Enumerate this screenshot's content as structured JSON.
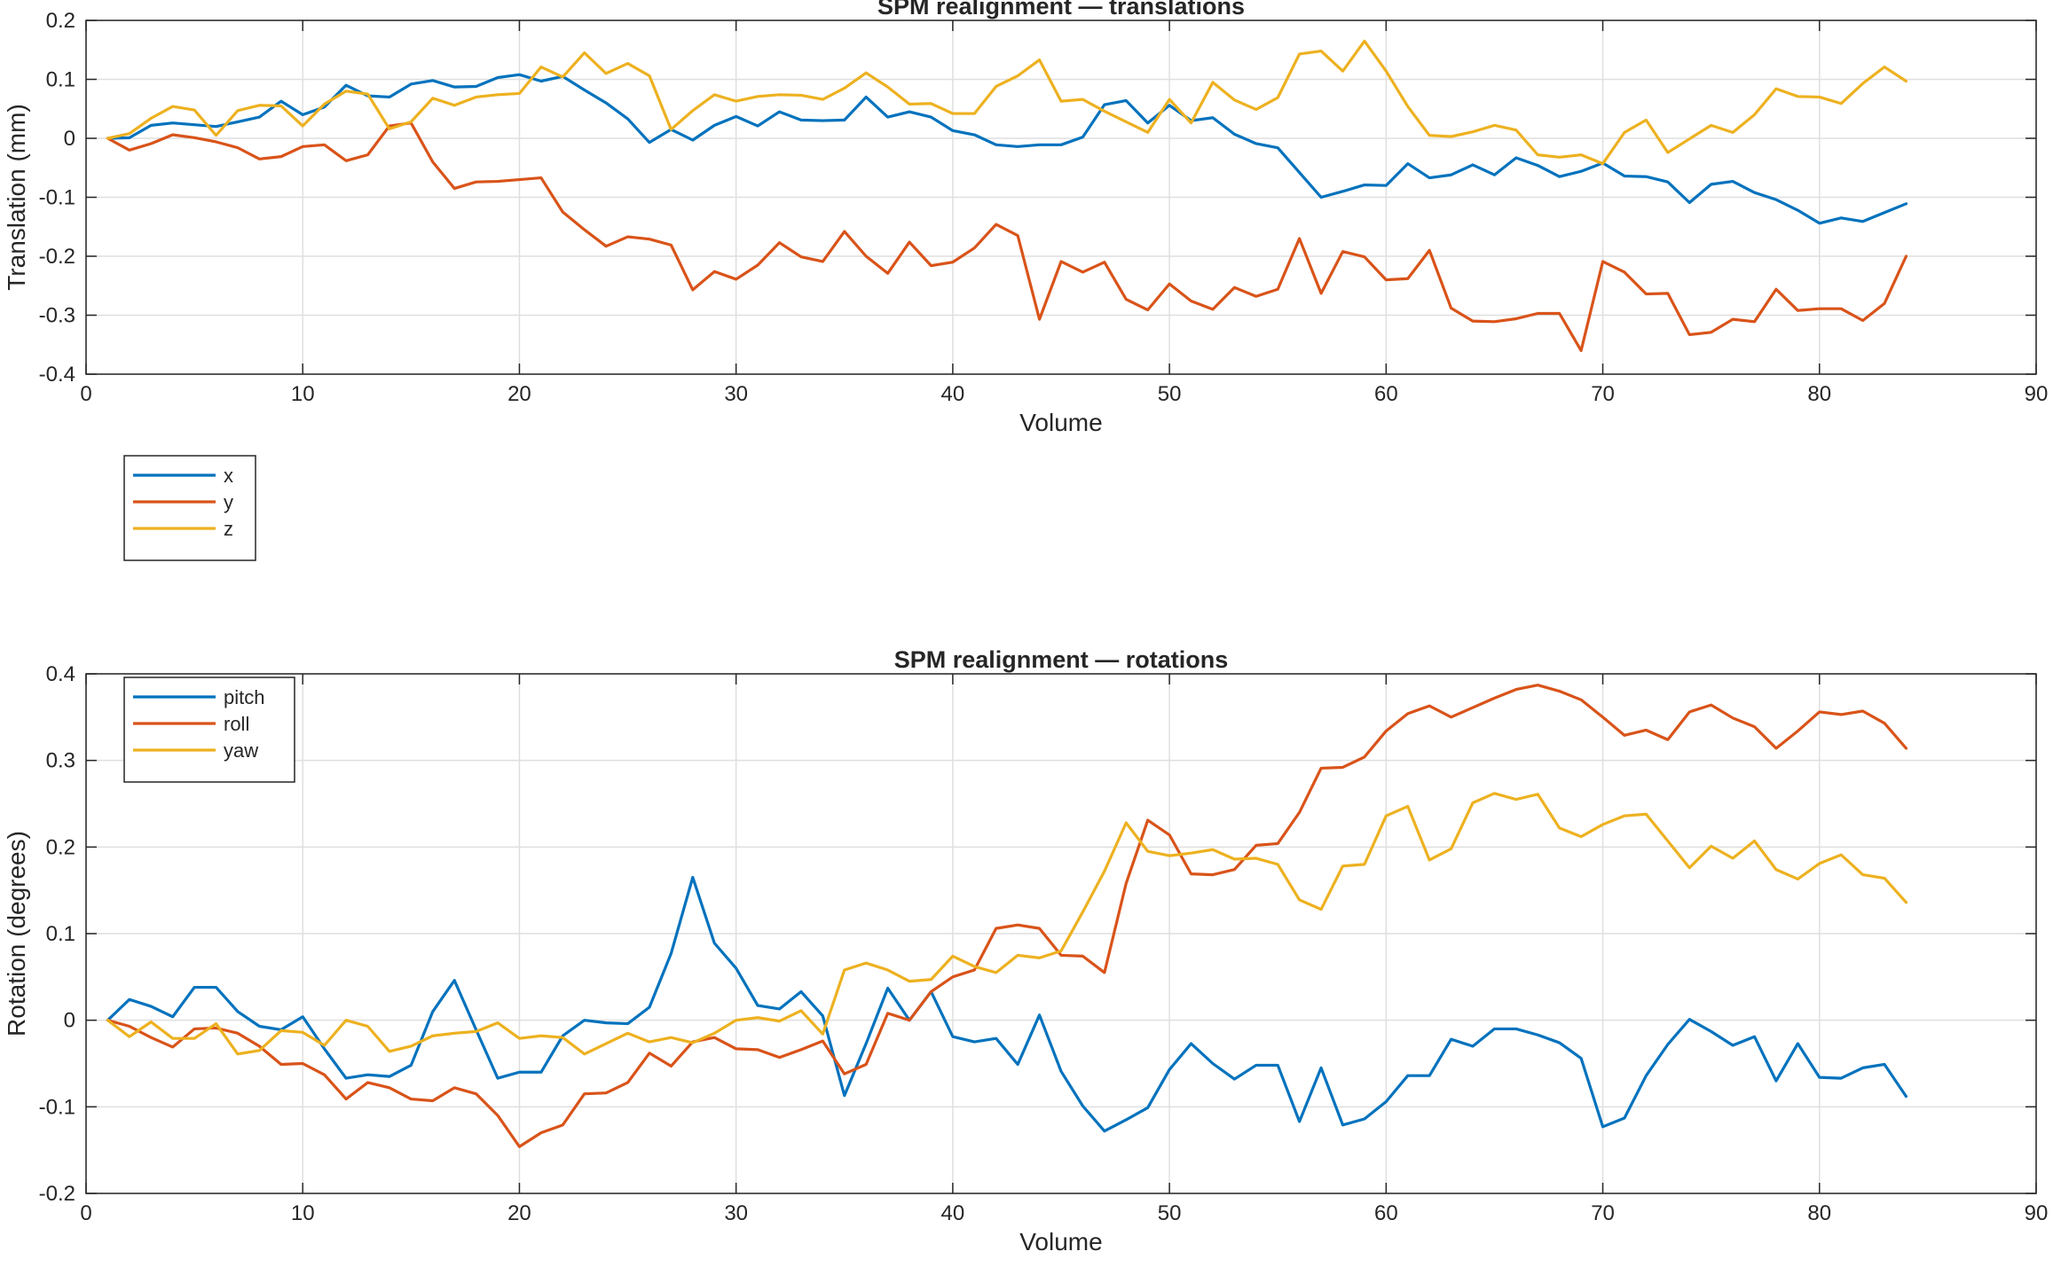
{
  "chart_data": [
    {
      "type": "line",
      "title": "SPM realignment — translations",
      "xlabel": "Volume",
      "ylabel": "Translation (mm)",
      "xlim": [
        0,
        90
      ],
      "ylim": [
        -0.4,
        0.2
      ],
      "xticks": [
        "0",
        "10",
        "20",
        "30",
        "40",
        "50",
        "60",
        "70",
        "80",
        "90"
      ],
      "yticks": [
        "-0.4",
        "-0.3",
        "-0.2",
        "-0.1",
        "0",
        "0.1",
        "0.2"
      ],
      "grid": true,
      "legend_position": "bottom-left",
      "series": [
        {
          "name": "x",
          "color": "#0072BD",
          "values": [
            0,
            0.001,
            0.022,
            0.026,
            0.023,
            0.02,
            0.028,
            0.036,
            0.063,
            0.04,
            0.053,
            0.09,
            0.072,
            0.07,
            0.092,
            0.098,
            0.087,
            0.088,
            0.103,
            0.108,
            0.097,
            0.105,
            0.082,
            0.06,
            0.033,
            -0.007,
            0.015,
            -0.003,
            0.022,
            0.037,
            0.021,
            0.045,
            0.031,
            0.03,
            0.031,
            0.07,
            0.036,
            0.045,
            0.036,
            0.013,
            0.006,
            -0.011,
            -0.014,
            -0.011,
            -0.011,
            0.002,
            0.057,
            0.064,
            0.026,
            0.056,
            0.03,
            0.035,
            0.007,
            -0.009,
            -0.016,
            -0.058,
            -0.1,
            -0.09,
            -0.079,
            -0.08,
            -0.043,
            -0.067,
            -0.062,
            -0.045,
            -0.062,
            -0.033,
            -0.046,
            -0.065,
            -0.056,
            -0.042,
            -0.064,
            -0.065,
            -0.074,
            -0.109,
            -0.078,
            -0.073,
            -0.092,
            -0.104,
            -0.122,
            -0.144,
            -0.135,
            -0.141,
            -0.126,
            -0.111
          ]
        },
        {
          "name": "y",
          "color": "#D95319",
          "values": [
            0,
            -0.02,
            -0.009,
            0.006,
            0.001,
            -0.006,
            -0.016,
            -0.035,
            -0.031,
            -0.014,
            -0.011,
            -0.038,
            -0.028,
            0.021,
            0.026,
            -0.04,
            -0.085,
            -0.074,
            -0.073,
            -0.07,
            -0.067,
            -0.125,
            -0.155,
            -0.183,
            -0.167,
            -0.171,
            -0.181,
            -0.257,
            -0.226,
            -0.239,
            -0.215,
            -0.177,
            -0.201,
            -0.209,
            -0.158,
            -0.2,
            -0.229,
            -0.176,
            -0.216,
            -0.21,
            -0.186,
            -0.146,
            -0.165,
            -0.307,
            -0.209,
            -0.227,
            -0.21,
            -0.273,
            -0.291,
            -0.247,
            -0.276,
            -0.29,
            -0.253,
            -0.268,
            -0.256,
            -0.17,
            -0.263,
            -0.192,
            -0.201,
            -0.24,
            -0.238,
            -0.19,
            -0.288,
            -0.31,
            -0.311,
            -0.306,
            -0.297,
            -0.297,
            -0.36,
            -0.209,
            -0.227,
            -0.264,
            -0.263,
            -0.333,
            -0.329,
            -0.307,
            -0.311,
            -0.256,
            -0.292,
            -0.289,
            -0.289,
            -0.309,
            -0.28,
            -0.2
          ]
        },
        {
          "name": "z",
          "color": "#EDB120",
          "values": [
            0,
            0.008,
            0.034,
            0.054,
            0.048,
            0.005,
            0.047,
            0.056,
            0.055,
            0.021,
            0.058,
            0.08,
            0.075,
            0.016,
            0.028,
            0.068,
            0.056,
            0.07,
            0.074,
            0.076,
            0.121,
            0.104,
            0.145,
            0.11,
            0.127,
            0.106,
            0.015,
            0.047,
            0.074,
            0.063,
            0.071,
            0.074,
            0.073,
            0.066,
            0.085,
            0.111,
            0.087,
            0.058,
            0.059,
            0.042,
            0.042,
            0.088,
            0.106,
            0.133,
            0.063,
            0.066,
            0.046,
            0.028,
            0.01,
            0.066,
            0.026,
            0.095,
            0.065,
            0.049,
            0.069,
            0.143,
            0.148,
            0.114,
            0.165,
            0.114,
            0.054,
            0.005,
            0.003,
            0.011,
            0.022,
            0.014,
            -0.028,
            -0.032,
            -0.028,
            -0.043,
            0.01,
            0.031,
            -0.024,
            -0.001,
            0.022,
            0.01,
            0.04,
            0.084,
            0.071,
            0.07,
            0.059,
            0.093,
            0.121,
            0.097
          ]
        }
      ]
    },
    {
      "type": "line",
      "title": "SPM realignment — rotations",
      "xlabel": "Volume",
      "ylabel": "Rotation (degrees)",
      "xlim": [
        0,
        90
      ],
      "ylim": [
        -0.2,
        0.4
      ],
      "xticks": [
        "0",
        "10",
        "20",
        "30",
        "40",
        "50",
        "60",
        "70",
        "80",
        "90"
      ],
      "yticks": [
        "-0.2",
        "-0.1",
        "0",
        "0.1",
        "0.2",
        "0.3",
        "0.4"
      ],
      "grid": true,
      "legend_position": "top-left",
      "series": [
        {
          "name": "pitch",
          "color": "#0072BD",
          "values": [
            0,
            0.024,
            0.016,
            0.004,
            0.038,
            0.038,
            0.01,
            -0.007,
            -0.011,
            0.004,
            -0.033,
            -0.067,
            -0.063,
            -0.065,
            -0.052,
            0.01,
            0.046,
            -0.011,
            -0.067,
            -0.06,
            -0.06,
            -0.018,
            0,
            -0.003,
            -0.004,
            0.015,
            0.077,
            0.165,
            0.089,
            0.06,
            0.017,
            0.013,
            0.033,
            0.005,
            -0.087,
            -0.027,
            0.037,
            0,
            0.033,
            -0.019,
            -0.025,
            -0.021,
            -0.051,
            0.006,
            -0.059,
            -0.099,
            -0.128,
            -0.115,
            -0.101,
            -0.057,
            -0.027,
            -0.05,
            -0.068,
            -0.052,
            -0.052,
            -0.117,
            -0.055,
            -0.121,
            -0.114,
            -0.094,
            -0.064,
            -0.064,
            -0.022,
            -0.03,
            -0.01,
            -0.01,
            -0.017,
            -0.026,
            -0.044,
            -0.123,
            -0.113,
            -0.064,
            -0.028,
            0.001,
            -0.013,
            -0.029,
            -0.019,
            -0.07,
            -0.027,
            -0.066,
            -0.067,
            -0.055,
            -0.051,
            -0.088
          ]
        },
        {
          "name": "roll",
          "color": "#D95319",
          "values": [
            0,
            -0.007,
            -0.02,
            -0.031,
            -0.01,
            -0.009,
            -0.015,
            -0.03,
            -0.051,
            -0.05,
            -0.063,
            -0.091,
            -0.072,
            -0.078,
            -0.091,
            -0.093,
            -0.078,
            -0.085,
            -0.11,
            -0.146,
            -0.13,
            -0.121,
            -0.085,
            -0.084,
            -0.072,
            -0.038,
            -0.053,
            -0.025,
            -0.02,
            -0.033,
            -0.034,
            -0.043,
            -0.034,
            -0.024,
            -0.062,
            -0.051,
            0.008,
            0,
            0.033,
            0.05,
            0.058,
            0.106,
            0.11,
            0.106,
            0.075,
            0.074,
            0.055,
            0.158,
            0.231,
            0.214,
            0.169,
            0.168,
            0.174,
            0.202,
            0.204,
            0.24,
            0.291,
            0.292,
            0.304,
            0.334,
            0.354,
            0.363,
            0.35,
            0.361,
            0.372,
            0.382,
            0.387,
            0.38,
            0.37,
            0.35,
            0.329,
            0.335,
            0.324,
            0.356,
            0.364,
            0.349,
            0.339,
            0.314,
            0.334,
            0.356,
            0.353,
            0.357,
            0.343,
            0.314
          ]
        },
        {
          "name": "yaw",
          "color": "#EDB120",
          "values": [
            0,
            -0.019,
            -0.002,
            -0.021,
            -0.021,
            -0.004,
            -0.039,
            -0.035,
            -0.012,
            -0.014,
            -0.029,
            0,
            -0.007,
            -0.036,
            -0.03,
            -0.018,
            -0.015,
            -0.013,
            -0.003,
            -0.021,
            -0.018,
            -0.02,
            -0.039,
            -0.027,
            -0.015,
            -0.025,
            -0.02,
            -0.026,
            -0.015,
            0,
            0.003,
            -0.001,
            0.011,
            -0.016,
            0.058,
            0.066,
            0.058,
            0.045,
            0.047,
            0.074,
            0.062,
            0.055,
            0.075,
            0.072,
            0.08,
            0.125,
            0.172,
            0.228,
            0.195,
            0.19,
            0.193,
            0.197,
            0.186,
            0.187,
            0.18,
            0.139,
            0.128,
            0.178,
            0.18,
            0.236,
            0.247,
            0.185,
            0.198,
            0.251,
            0.262,
            0.255,
            0.261,
            0.222,
            0.212,
            0.226,
            0.236,
            0.238,
            0.207,
            0.176,
            0.201,
            0.187,
            0.207,
            0.174,
            0.163,
            0.181,
            0.191,
            0.168,
            0.164,
            0.136
          ]
        }
      ]
    }
  ]
}
